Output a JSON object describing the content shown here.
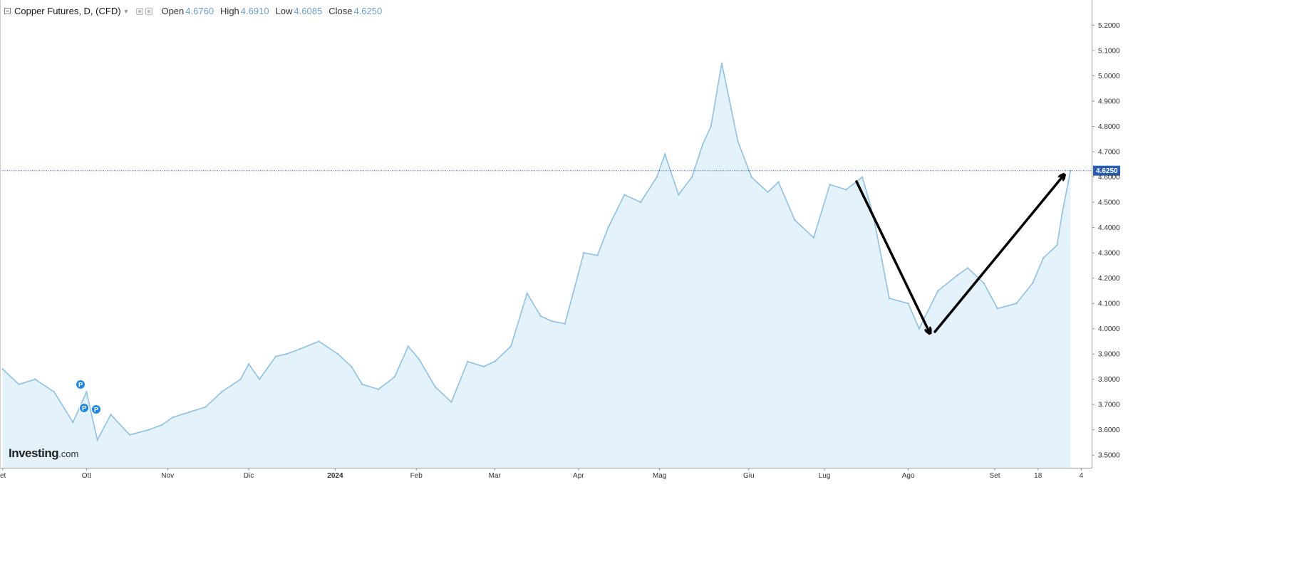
{
  "legend": {
    "title": "Copper Futures, D, (CFD)",
    "open_label": "Open",
    "open_value": "4.6760",
    "high_label": "High",
    "high_value": "4.6910",
    "low_label": "Low",
    "low_value": "4.6085",
    "close_label": "Close",
    "close_value": "4.6250"
  },
  "watermark": {
    "brand": "Investing",
    "suffix": ".com"
  },
  "event_markers": {
    "label": "P"
  },
  "price_label": "4.6250",
  "colors": {
    "line": "#8fc0e6",
    "area": "#e3f2fb",
    "price_line": "#2b5fb3",
    "price_label_bg": "#2b5fb3",
    "axis_text": "#333333",
    "marker": "#1e88e5",
    "arrow": "#000000"
  },
  "chart_data": {
    "type": "area",
    "title": "Copper Futures, D, (CFD)",
    "xlabel": "",
    "ylabel": "",
    "ylim": [
      3.45,
      5.3
    ],
    "y_ticks": [
      "3.5000",
      "3.6000",
      "3.7000",
      "3.8000",
      "3.9000",
      "4.0000",
      "4.1000",
      "4.2000",
      "4.3000",
      "4.4000",
      "4.5000",
      "4.6000",
      "4.7000",
      "4.8000",
      "4.9000",
      "5.0000",
      "5.1000",
      "5.2000"
    ],
    "x_ticks": [
      {
        "label": "et",
        "date": "2023-09-01",
        "bold": false
      },
      {
        "label": "Ott",
        "date": "2023-10-02",
        "bold": false
      },
      {
        "label": "Nov",
        "date": "2023-11-01",
        "bold": false
      },
      {
        "label": "Dic",
        "date": "2023-12-01",
        "bold": false
      },
      {
        "label": "2024",
        "date": "2024-01-02",
        "bold": true
      },
      {
        "label": "Feb",
        "date": "2024-02-01",
        "bold": false
      },
      {
        "label": "Mar",
        "date": "2024-03-01",
        "bold": false
      },
      {
        "label": "Apr",
        "date": "2024-04-01",
        "bold": false
      },
      {
        "label": "Mag",
        "date": "2024-05-01",
        "bold": false
      },
      {
        "label": "Giu",
        "date": "2024-06-03",
        "bold": false
      },
      {
        "label": "Lug",
        "date": "2024-07-01",
        "bold": false
      },
      {
        "label": "Ago",
        "date": "2024-08-01",
        "bold": false
      },
      {
        "label": "Set",
        "date": "2024-09-02",
        "bold": false
      },
      {
        "label": "18",
        "date": "2024-09-18",
        "bold": false
      },
      {
        "label": "4",
        "date": "2024-10-04",
        "bold": false
      }
    ],
    "last_price": 4.625,
    "series": [
      {
        "name": "Copper Futures, D, (CFD)",
        "x": [
          "2023-09-01",
          "2023-09-07",
          "2023-09-13",
          "2023-09-20",
          "2023-09-27",
          "2023-10-02",
          "2023-10-06",
          "2023-10-11",
          "2023-10-18",
          "2023-10-25",
          "2023-10-30",
          "2023-11-03",
          "2023-11-09",
          "2023-11-15",
          "2023-11-21",
          "2023-11-28",
          "2023-12-01",
          "2023-12-05",
          "2023-12-11",
          "2023-12-15",
          "2023-12-20",
          "2023-12-27",
          "2024-01-03",
          "2024-01-08",
          "2024-01-12",
          "2024-01-18",
          "2024-01-24",
          "2024-01-29",
          "2024-02-02",
          "2024-02-08",
          "2024-02-14",
          "2024-02-20",
          "2024-02-26",
          "2024-03-01",
          "2024-03-07",
          "2024-03-13",
          "2024-03-18",
          "2024-03-22",
          "2024-03-27",
          "2024-04-03",
          "2024-04-08",
          "2024-04-12",
          "2024-04-18",
          "2024-04-24",
          "2024-04-30",
          "2024-05-03",
          "2024-05-08",
          "2024-05-13",
          "2024-05-17",
          "2024-05-20",
          "2024-05-24",
          "2024-05-30",
          "2024-06-04",
          "2024-06-10",
          "2024-06-14",
          "2024-06-20",
          "2024-06-27",
          "2024-07-03",
          "2024-07-09",
          "2024-07-15",
          "2024-07-19",
          "2024-07-25",
          "2024-08-01",
          "2024-08-05",
          "2024-08-12",
          "2024-08-19",
          "2024-08-23",
          "2024-08-29",
          "2024-09-03",
          "2024-09-10",
          "2024-09-16",
          "2024-09-20",
          "2024-09-25",
          "2024-09-27",
          "2024-09-30"
        ],
        "values": [
          3.84,
          3.78,
          3.8,
          3.75,
          3.63,
          3.75,
          3.56,
          3.66,
          3.58,
          3.6,
          3.62,
          3.65,
          3.67,
          3.69,
          3.75,
          3.8,
          3.86,
          3.8,
          3.89,
          3.9,
          3.92,
          3.95,
          3.9,
          3.85,
          3.78,
          3.76,
          3.81,
          3.93,
          3.88,
          3.77,
          3.71,
          3.87,
          3.85,
          3.87,
          3.93,
          4.14,
          4.05,
          4.03,
          4.02,
          4.3,
          4.29,
          4.4,
          4.53,
          4.5,
          4.6,
          4.69,
          4.53,
          4.6,
          4.73,
          4.8,
          5.05,
          4.74,
          4.6,
          4.54,
          4.58,
          4.43,
          4.36,
          4.57,
          4.55,
          4.6,
          4.45,
          4.12,
          4.1,
          4.0,
          4.15,
          4.21,
          4.24,
          4.18,
          4.08,
          4.1,
          4.18,
          4.28,
          4.33,
          4.46,
          4.625
        ]
      }
    ]
  }
}
